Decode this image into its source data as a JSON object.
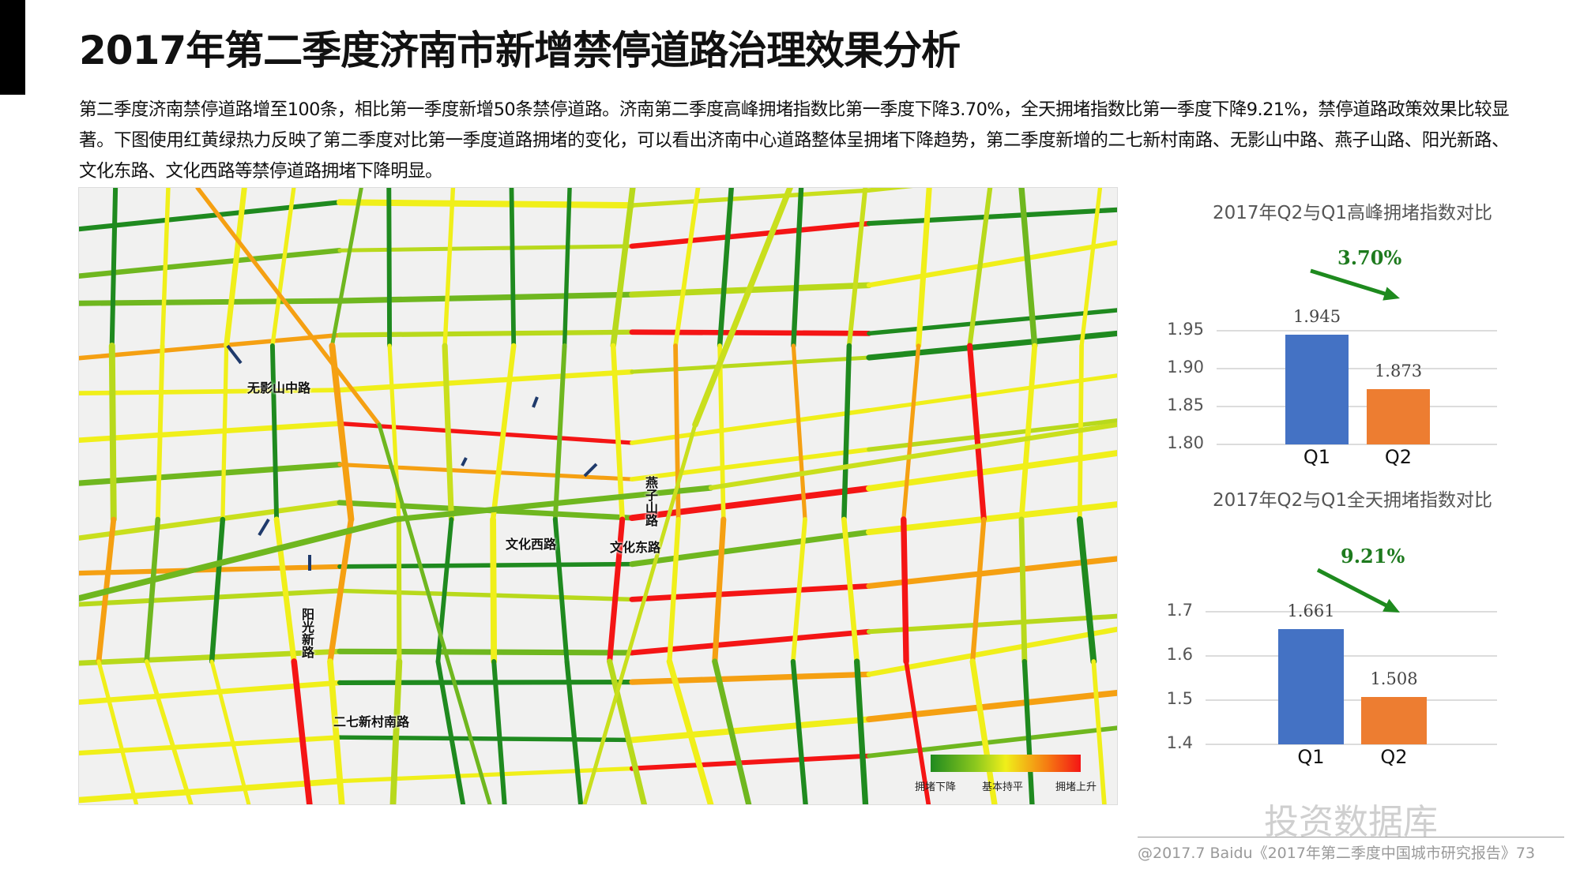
{
  "title": "2017年第二季度济南市新增禁停道路治理效果分析",
  "paragraph": "第二季度济南禁停道路增至100条，相比第一季度新增50条禁停道路。济南第二季度高峰拥堵指数比第一季度下降3.70%，全天拥堵指数比第一季度下降9.21%，禁停道路政策效果比较显著。下图使用红黄绿热力反映了第二季度对比第一季度道路拥堵的变化，可以看出济南中心道路整体呈拥堵下降趋势，第二季度新增的二七新村南路、无影山中路、燕子山路、阳光新路、文化东路、文化西路等禁停道路拥堵下降明显。",
  "map": {
    "labels": {
      "wuyingshan": "无影山中路",
      "yanzishan": "燕子山路",
      "wenhua_west": "文化西路",
      "wenhua_east": "文化东路",
      "yangguang": "阳光新路",
      "erqi": "二七新村南路"
    },
    "legend": {
      "low": "拥堵下降",
      "mid": "基本持平",
      "high": "拥堵上升"
    },
    "colors": {
      "down": "#1f8a1f",
      "flat": "#f0ef1a",
      "up": "#f41515"
    }
  },
  "chart_data": [
    {
      "type": "bar",
      "title": "2017年Q2与Q1高峰拥堵指数对比",
      "categories": [
        "Q1",
        "Q2"
      ],
      "values": [
        1.945,
        1.873
      ],
      "value_labels": [
        "1.945",
        "1.873"
      ],
      "ylim": [
        1.8,
        1.95
      ],
      "yticks": [
        "1.95",
        "1.90",
        "1.85",
        "1.80"
      ],
      "grid": true,
      "change_label": "3.70%",
      "colors": [
        "#4472c4",
        "#ed7d31"
      ]
    },
    {
      "type": "bar",
      "title": "2017年Q2与Q1全天拥堵指数对比",
      "categories": [
        "Q1",
        "Q2"
      ],
      "values": [
        1.661,
        1.508
      ],
      "value_labels": [
        "1.661",
        "1.508"
      ],
      "ylim": [
        1.4,
        1.7
      ],
      "yticks": [
        "1.7",
        "1.6",
        "1.5",
        "1.4"
      ],
      "grid": true,
      "change_label": "9.21%",
      "colors": [
        "#4472c4",
        "#ed7d31"
      ]
    }
  ],
  "watermark": "投资数据库",
  "footer": "@2017.7 Baidu《2017年第二季度中国城市研究报告》73"
}
